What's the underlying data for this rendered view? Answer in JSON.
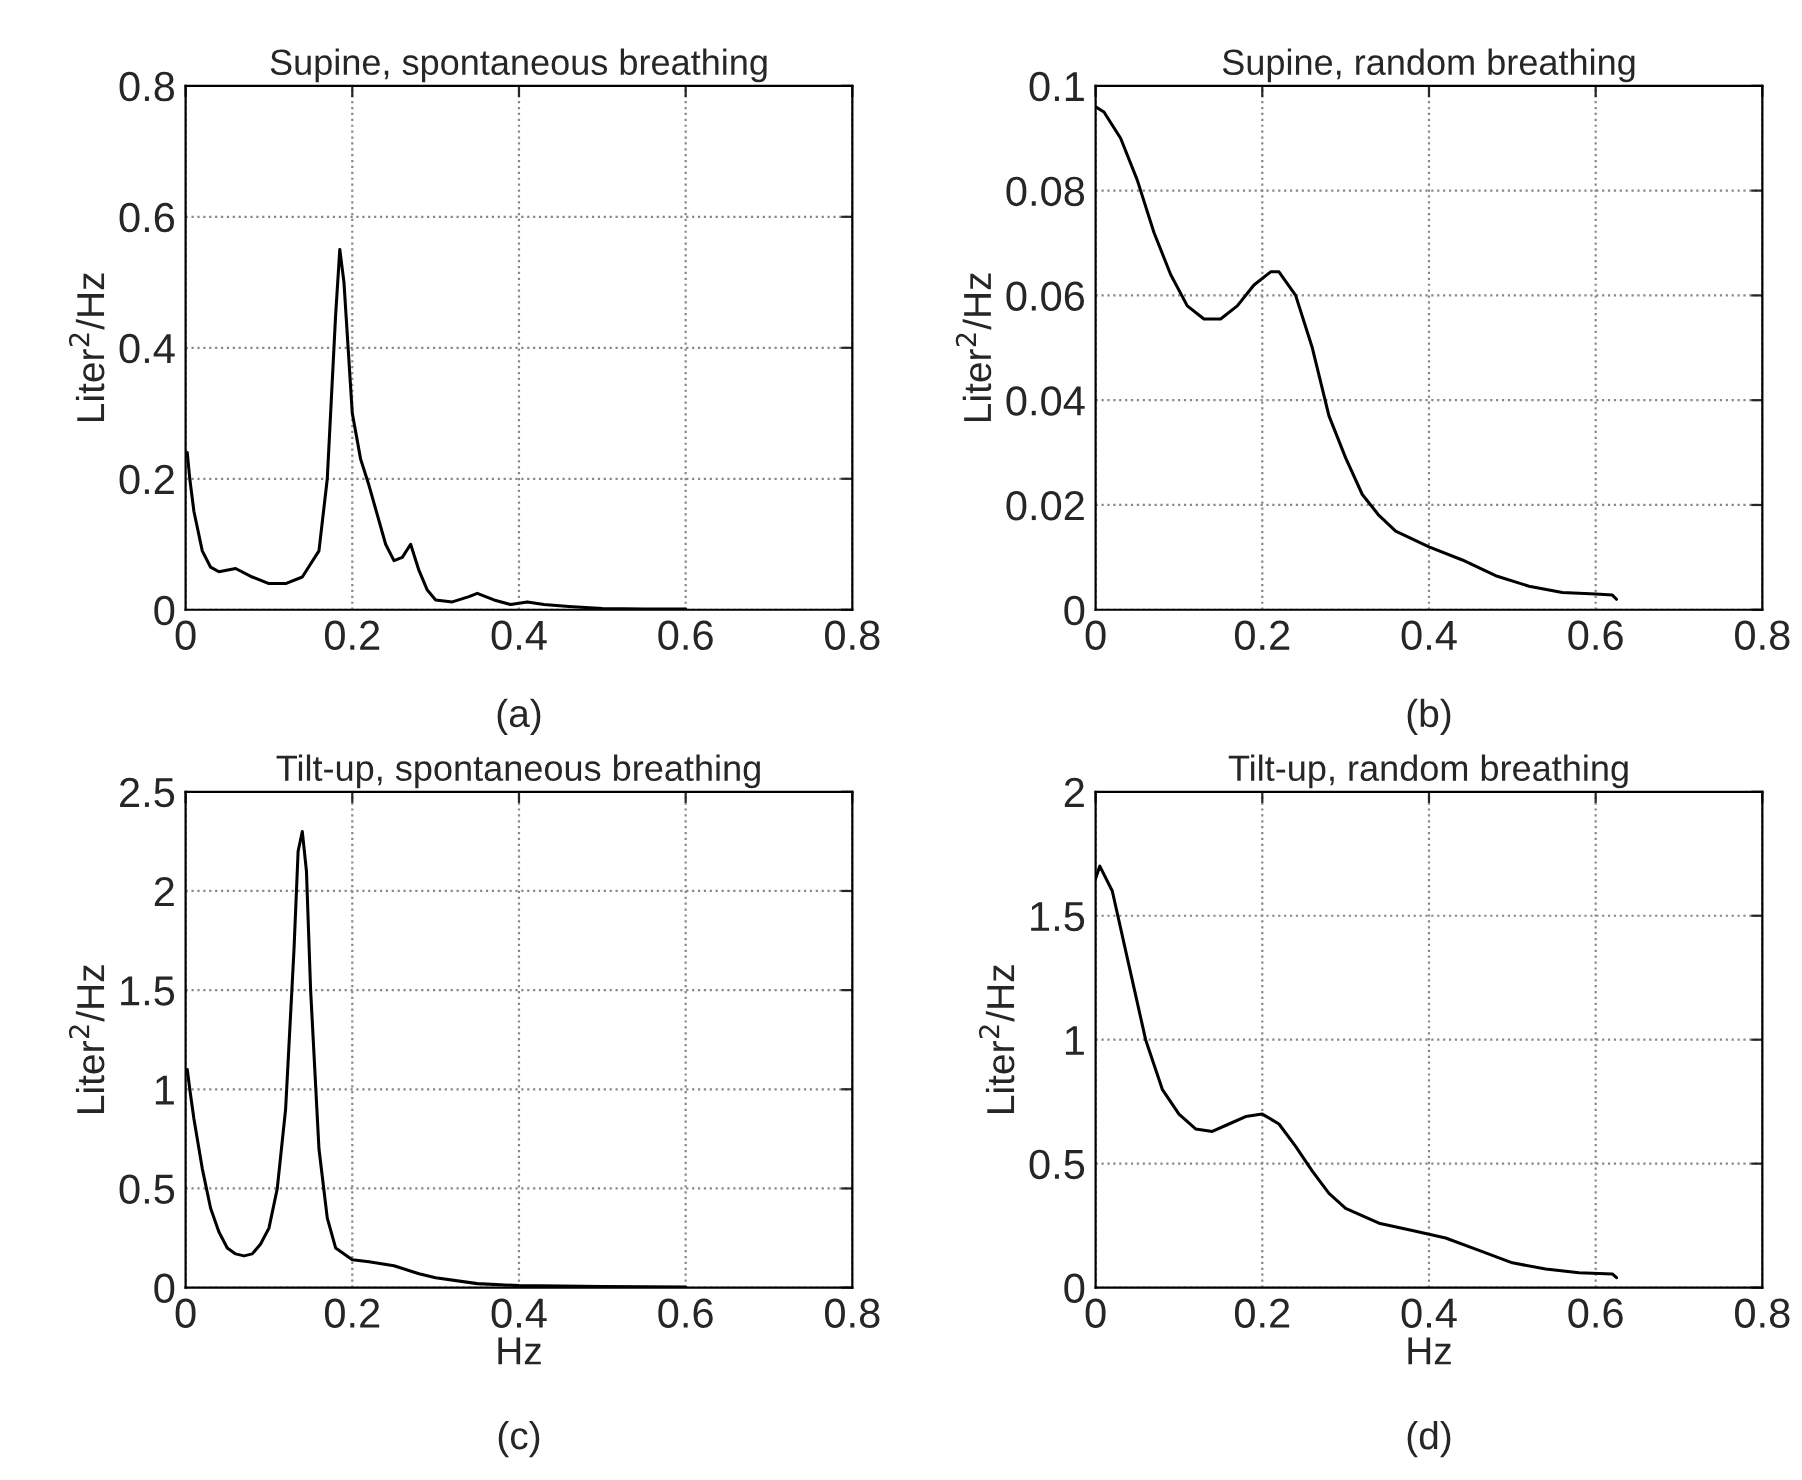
{
  "chart_data": [
    {
      "type": "line",
      "title": "Supine, spontaneous breathing",
      "ylabel": "Liter$^{2}$/Hz",
      "annotations": [
        "(a)"
      ],
      "xlim": [
        0,
        0.8
      ],
      "ylim": [
        0,
        0.8
      ],
      "xticks": [
        0,
        0.2,
        0.4,
        0.6,
        0.8
      ],
      "yticks": [
        0,
        0.2,
        0.4,
        0.6,
        0.8
      ],
      "grid": true,
      "legend": false,
      "marker": "none",
      "line_style": "solid",
      "series": [
        {
          "color": "#000000",
          "x": [
            0.002,
            0.005,
            0.01,
            0.02,
            0.03,
            0.04,
            0.06,
            0.08,
            0.1,
            0.12,
            0.14,
            0.16,
            0.17,
            0.18,
            0.185,
            0.19,
            0.2,
            0.21,
            0.22,
            0.24,
            0.25,
            0.26,
            0.27,
            0.28,
            0.29,
            0.3,
            0.32,
            0.34,
            0.35,
            0.37,
            0.39,
            0.41,
            0.43,
            0.46,
            0.5,
            0.55,
            0.6
          ],
          "values": [
            0.24,
            0.2,
            0.15,
            0.09,
            0.065,
            0.058,
            0.063,
            0.05,
            0.04,
            0.04,
            0.05,
            0.09,
            0.2,
            0.45,
            0.55,
            0.5,
            0.3,
            0.23,
            0.19,
            0.1,
            0.075,
            0.08,
            0.1,
            0.06,
            0.03,
            0.015,
            0.012,
            0.02,
            0.025,
            0.015,
            0.008,
            0.012,
            0.008,
            0.005,
            0.002,
            0.001,
            0.001
          ]
        }
      ]
    },
    {
      "type": "line",
      "title": "Supine, random breathing",
      "ylabel": "Liter$^{2}$/Hz",
      "annotations": [
        "(b)"
      ],
      "xlim": [
        0,
        0.8
      ],
      "ylim": [
        0,
        0.1
      ],
      "xticks": [
        0,
        0.2,
        0.4,
        0.6,
        0.8
      ],
      "yticks": [
        0,
        0.02,
        0.04,
        0.06,
        0.08,
        0.1
      ],
      "grid": true,
      "legend": false,
      "marker": "none",
      "line_style": "solid",
      "series": [
        {
          "color": "#000000",
          "x": [
            0,
            0.01,
            0.03,
            0.05,
            0.07,
            0.09,
            0.11,
            0.13,
            0.15,
            0.17,
            0.19,
            0.21,
            0.22,
            0.24,
            0.26,
            0.28,
            0.3,
            0.32,
            0.34,
            0.36,
            0.4,
            0.44,
            0.48,
            0.52,
            0.56,
            0.6,
            0.62,
            0.625
          ],
          "values": [
            0.096,
            0.095,
            0.09,
            0.082,
            0.072,
            0.064,
            0.058,
            0.0555,
            0.0555,
            0.058,
            0.062,
            0.0645,
            0.0645,
            0.06,
            0.05,
            0.037,
            0.029,
            0.022,
            0.018,
            0.015,
            0.012,
            0.0095,
            0.0065,
            0.0045,
            0.0033,
            0.003,
            0.0028,
            0.002
          ]
        }
      ]
    },
    {
      "type": "line",
      "title": "Tilt-up, spontaneous breathing",
      "xlabel": "Hz",
      "ylabel": "Liter$^{2}$/Hz",
      "annotations": [
        "(c)"
      ],
      "xlim": [
        0,
        0.8
      ],
      "ylim": [
        0,
        2.5
      ],
      "xticks": [
        0,
        0.2,
        0.4,
        0.6,
        0.8
      ],
      "yticks": [
        0,
        0.5,
        1,
        1.5,
        2,
        2.5
      ],
      "grid": true,
      "legend": false,
      "marker": "none",
      "line_style": "solid",
      "series": [
        {
          "color": "#000000",
          "x": [
            0.002,
            0.005,
            0.01,
            0.02,
            0.03,
            0.04,
            0.05,
            0.06,
            0.07,
            0.08,
            0.09,
            0.1,
            0.11,
            0.12,
            0.13,
            0.135,
            0.14,
            0.145,
            0.15,
            0.16,
            0.17,
            0.18,
            0.2,
            0.22,
            0.25,
            0.28,
            0.3,
            0.35,
            0.4,
            0.5,
            0.6
          ],
          "values": [
            1.1,
            1.0,
            0.85,
            0.6,
            0.4,
            0.28,
            0.2,
            0.17,
            0.16,
            0.17,
            0.22,
            0.3,
            0.5,
            0.9,
            1.7,
            2.2,
            2.3,
            2.1,
            1.5,
            0.7,
            0.35,
            0.2,
            0.14,
            0.13,
            0.11,
            0.07,
            0.05,
            0.02,
            0.01,
            0.005,
            0.003
          ]
        }
      ]
    },
    {
      "type": "line",
      "title": "Tilt-up, random breathing",
      "xlabel": "Hz",
      "ylabel": "Liter$^{2}$/Hz",
      "annotations": [
        "(d)"
      ],
      "xlim": [
        0,
        0.8
      ],
      "ylim": [
        0,
        2
      ],
      "xticks": [
        0,
        0.2,
        0.4,
        0.6,
        0.8
      ],
      "yticks": [
        0,
        0.5,
        1,
        1.5,
        2
      ],
      "grid": true,
      "legend": false,
      "marker": "none",
      "line_style": "solid",
      "series": [
        {
          "color": "#000000",
          "x": [
            0,
            0.005,
            0.02,
            0.04,
            0.06,
            0.08,
            0.1,
            0.12,
            0.14,
            0.16,
            0.18,
            0.2,
            0.22,
            0.24,
            0.26,
            0.28,
            0.3,
            0.34,
            0.38,
            0.42,
            0.46,
            0.5,
            0.54,
            0.58,
            0.62,
            0.625
          ],
          "values": [
            1.65,
            1.7,
            1.6,
            1.3,
            1.0,
            0.8,
            0.7,
            0.64,
            0.63,
            0.66,
            0.69,
            0.7,
            0.66,
            0.57,
            0.47,
            0.38,
            0.32,
            0.26,
            0.23,
            0.2,
            0.15,
            0.1,
            0.075,
            0.06,
            0.055,
            0.04
          ]
        }
      ]
    }
  ]
}
